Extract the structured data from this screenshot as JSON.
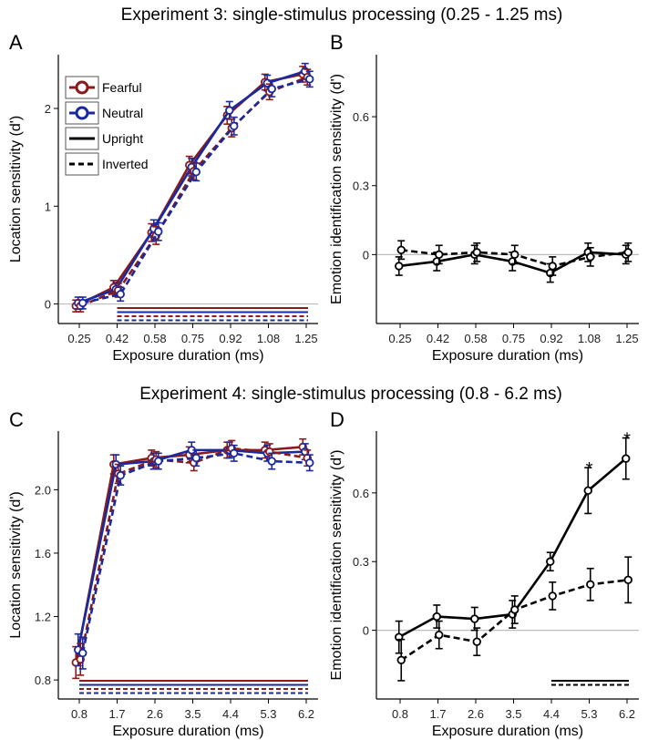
{
  "figure": {
    "experiment3_title": "Experiment 3: single-stimulus processing (0.25 - 1.25 ms)",
    "experiment4_title": "Experiment 4: single-stimulus processing (0.8 - 6.2 ms)"
  },
  "legend": {
    "fearful": "Fearful",
    "neutral": "Neutral",
    "upright": "Upright",
    "inverted": "Inverted"
  },
  "colors": {
    "fearful": "#8b1a1a",
    "neutral": "#1a2a9e",
    "black": "#000000",
    "zero_line": "#bdbdbd"
  },
  "chart_data": [
    {
      "panel": "A",
      "type": "line",
      "xlabel": "Exposure duration (ms)",
      "ylabel": "Location sensitivity (d')",
      "categories": [
        "0.25",
        "0.42",
        "0.58",
        "0.75",
        "0.92",
        "1.08",
        "1.25"
      ],
      "yticks": [
        0,
        1,
        2
      ],
      "ylim": [
        -0.2,
        2.55
      ],
      "zero_line": true,
      "legend_position": "top-left",
      "series": [
        {
          "name": "Fearful Upright",
          "color": "fearful",
          "dash": false,
          "values": [
            -0.02,
            0.17,
            0.73,
            1.42,
            1.93,
            2.27,
            2.35
          ],
          "errors": [
            0.06,
            0.07,
            0.09,
            0.09,
            0.09,
            0.08,
            0.08
          ]
        },
        {
          "name": "Neutral Upright",
          "color": "neutral",
          "dash": false,
          "values": [
            0.01,
            0.15,
            0.77,
            1.4,
            1.98,
            2.26,
            2.38
          ],
          "errors": [
            0.06,
            0.07,
            0.09,
            0.09,
            0.09,
            0.08,
            0.08
          ]
        },
        {
          "name": "Fearful Inverted",
          "color": "fearful",
          "dash": true,
          "values": [
            -0.02,
            0.14,
            0.7,
            1.36,
            1.8,
            2.17,
            2.32
          ],
          "errors": [
            0.06,
            0.07,
            0.09,
            0.09,
            0.09,
            0.08,
            0.08
          ]
        },
        {
          "name": "Neutral Inverted",
          "color": "neutral",
          "dash": true,
          "values": [
            0.01,
            0.1,
            0.74,
            1.35,
            1.82,
            2.2,
            2.3
          ],
          "errors": [
            0.06,
            0.07,
            0.09,
            0.09,
            0.09,
            0.08,
            0.08
          ]
        }
      ],
      "sig_bars": [
        {
          "from": "0.42",
          "to": "1.25",
          "color": "fearful",
          "dash": false
        },
        {
          "from": "0.42",
          "to": "1.25",
          "color": "neutral",
          "dash": false
        },
        {
          "from": "0.42",
          "to": "1.25",
          "color": "fearful",
          "dash": true
        },
        {
          "from": "0.42",
          "to": "1.25",
          "color": "neutral",
          "dash": true
        }
      ]
    },
    {
      "panel": "B",
      "type": "line",
      "xlabel": "Exposure duration (ms)",
      "ylabel": "Emotion identification sensitivity (d')",
      "categories": [
        "0.25",
        "0.42",
        "0.58",
        "0.75",
        "0.92",
        "1.08",
        "1.25"
      ],
      "yticks": [
        0,
        0.3,
        0.6
      ],
      "ytick_labels": [
        "0",
        "0.3",
        "0.6"
      ],
      "ylim": [
        -0.3,
        0.87
      ],
      "zero_line": true,
      "series": [
        {
          "name": "Upright",
          "color": "black",
          "dash": false,
          "values": [
            -0.05,
            -0.03,
            0.0,
            -0.03,
            -0.08,
            0.01,
            0.0
          ],
          "errors": [
            0.04,
            0.04,
            0.04,
            0.04,
            0.04,
            0.04,
            0.04
          ]
        },
        {
          "name": "Inverted",
          "color": "black",
          "dash": true,
          "values": [
            0.02,
            0.0,
            0.01,
            0.0,
            -0.05,
            -0.01,
            0.01
          ],
          "errors": [
            0.04,
            0.04,
            0.04,
            0.04,
            0.04,
            0.04,
            0.04
          ]
        }
      ],
      "sig_bars": [],
      "stars": []
    },
    {
      "panel": "C",
      "type": "line",
      "xlabel": "Exposure duration (ms)",
      "ylabel": "Location sensitivity (d')",
      "categories": [
        "0.8",
        "1.7",
        "2.6",
        "3.5",
        "4.4",
        "5.3",
        "6.2"
      ],
      "yticks": [
        0.8,
        1.2,
        1.6,
        2.0
      ],
      "ytick_labels": [
        "0.8",
        "1.2",
        "1.6",
        "2.0"
      ],
      "ylim": [
        0.68,
        2.37
      ],
      "zero_line": false,
      "series": [
        {
          "name": "Fearful Upright",
          "color": "fearful",
          "dash": false,
          "values": [
            0.91,
            2.16,
            2.2,
            2.22,
            2.25,
            2.25,
            2.27
          ],
          "errors": [
            0.1,
            0.06,
            0.05,
            0.05,
            0.05,
            0.05,
            0.05
          ]
        },
        {
          "name": "Neutral Upright",
          "color": "neutral",
          "dash": false,
          "values": [
            0.99,
            2.16,
            2.18,
            2.25,
            2.25,
            2.23,
            2.24
          ],
          "errors": [
            0.1,
            0.06,
            0.05,
            0.05,
            0.05,
            0.05,
            0.05
          ]
        },
        {
          "name": "Fearful Inverted",
          "color": "fearful",
          "dash": true,
          "values": [
            0.93,
            2.1,
            2.19,
            2.17,
            2.26,
            2.24,
            2.2
          ],
          "errors": [
            0.1,
            0.06,
            0.05,
            0.05,
            0.05,
            0.05,
            0.05
          ]
        },
        {
          "name": "Neutral Inverted",
          "color": "neutral",
          "dash": true,
          "values": [
            0.97,
            2.09,
            2.18,
            2.2,
            2.23,
            2.18,
            2.17
          ],
          "errors": [
            0.1,
            0.06,
            0.05,
            0.05,
            0.05,
            0.05,
            0.05
          ]
        }
      ],
      "sig_bars": [
        {
          "from": "0.8",
          "to": "6.2",
          "color": "fearful",
          "dash": false
        },
        {
          "from": "0.8",
          "to": "6.2",
          "color": "neutral",
          "dash": false
        },
        {
          "from": "0.8",
          "to": "6.2",
          "color": "fearful",
          "dash": true
        },
        {
          "from": "0.8",
          "to": "6.2",
          "color": "neutral",
          "dash": true
        }
      ]
    },
    {
      "panel": "D",
      "type": "line",
      "xlabel": "Exposure duration (ms)",
      "ylabel": "Emotion identification sensitivity (d')",
      "categories": [
        "0.8",
        "1.7",
        "2.6",
        "3.5",
        "4.4",
        "5.3",
        "6.2"
      ],
      "yticks": [
        0,
        0.3,
        0.6
      ],
      "ytick_labels": [
        "0",
        "0.3",
        "0.6"
      ],
      "ylim": [
        -0.3,
        0.87
      ],
      "zero_line": true,
      "series": [
        {
          "name": "Upright",
          "color": "black",
          "dash": false,
          "values": [
            -0.03,
            0.06,
            0.05,
            0.07,
            0.3,
            0.61,
            0.75
          ],
          "errors": [
            0.07,
            0.05,
            0.05,
            0.06,
            0.04,
            0.1,
            0.09
          ]
        },
        {
          "name": "Inverted",
          "color": "black",
          "dash": true,
          "values": [
            -0.13,
            -0.02,
            -0.05,
            0.09,
            0.15,
            0.2,
            0.22
          ],
          "errors": [
            0.09,
            0.06,
            0.06,
            0.06,
            0.06,
            0.07,
            0.1
          ]
        }
      ],
      "sig_bars": [
        {
          "from": "4.4",
          "to": "6.2",
          "color": "black",
          "dash": false
        },
        {
          "from": "4.4",
          "to": "6.2",
          "color": "black",
          "dash": true
        }
      ],
      "stars": [
        {
          "x": "5.3",
          "y": 0.71,
          "label": "*"
        },
        {
          "x": "6.2",
          "y": 0.84,
          "label": "*"
        }
      ]
    }
  ]
}
